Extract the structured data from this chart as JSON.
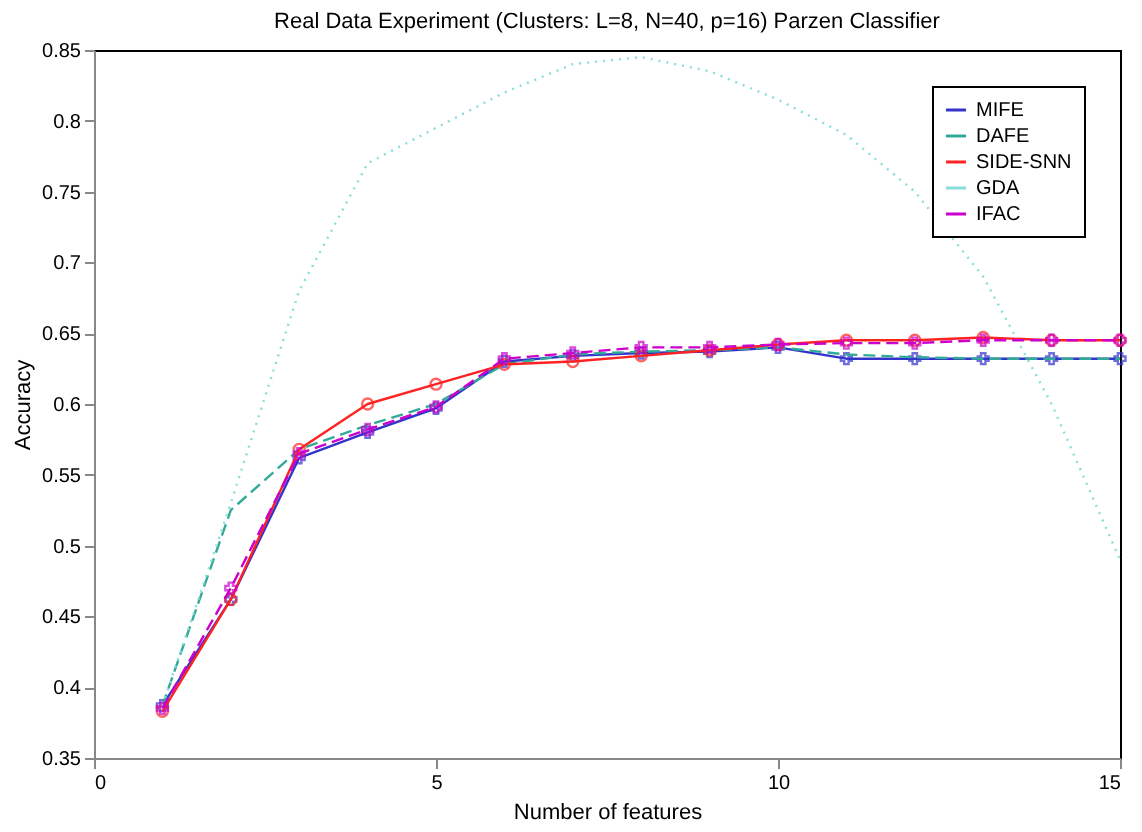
{
  "chart_data": {
    "type": "line",
    "title": "Real Data Experiment (Clusters: L=8, N=40, p=16) Parzen Classifier",
    "xlabel": "Number of features",
    "ylabel": "Accuracy",
    "x": [
      1,
      2,
      3,
      4,
      5,
      6,
      7,
      8,
      9,
      10,
      11,
      12,
      13,
      14,
      15
    ],
    "xlim": [
      0,
      15
    ],
    "xticks": [
      0,
      5,
      10,
      15
    ],
    "ylim": [
      0.35,
      0.85
    ],
    "yticks": [
      0.35,
      0.4,
      0.45,
      0.5,
      0.55,
      0.6,
      0.65,
      0.7,
      0.75,
      0.8,
      0.85
    ],
    "grid": false,
    "legend": "top right",
    "series": [
      {
        "name": "MIFE",
        "color": "#3333cc",
        "marker": "cross",
        "line_style": "solid",
        "values": [
          0.387,
          0.462,
          0.562,
          0.58,
          0.597,
          0.63,
          0.634,
          0.636,
          0.637,
          0.64,
          0.632,
          0.632,
          0.632,
          0.632,
          0.632
        ]
      },
      {
        "name": "DAFE",
        "color": "#33aa99",
        "marker": "none",
        "line_style": "dashed",
        "values": [
          0.387,
          0.525,
          0.568,
          0.585,
          0.6,
          0.628,
          0.635,
          0.637,
          0.638,
          0.64,
          0.635,
          0.633,
          0.632,
          0.632,
          0.632
        ]
      },
      {
        "name": "SIDE-SNN",
        "color": "#ff2222",
        "marker": "circle",
        "line_style": "solid",
        "values": [
          0.383,
          0.462,
          0.568,
          0.6,
          0.614,
          0.628,
          0.63,
          0.634,
          0.638,
          0.642,
          0.645,
          0.645,
          0.647,
          0.645,
          0.645
        ]
      },
      {
        "name": "GDA",
        "color": "#88dddd",
        "marker": "none",
        "line_style": "dotted",
        "values": [
          0.387,
          0.53,
          0.68,
          0.77,
          0.795,
          0.82,
          0.84,
          0.845,
          0.835,
          0.815,
          0.79,
          0.75,
          0.69,
          0.6,
          0.49
        ]
      },
      {
        "name": "IFAC",
        "color": "#cc00cc",
        "marker": "cross",
        "line_style": "dashed",
        "values": [
          0.385,
          0.47,
          0.565,
          0.582,
          0.598,
          0.632,
          0.636,
          0.64,
          0.64,
          0.642,
          0.643,
          0.643,
          0.645,
          0.645,
          0.645
        ]
      }
    ]
  }
}
